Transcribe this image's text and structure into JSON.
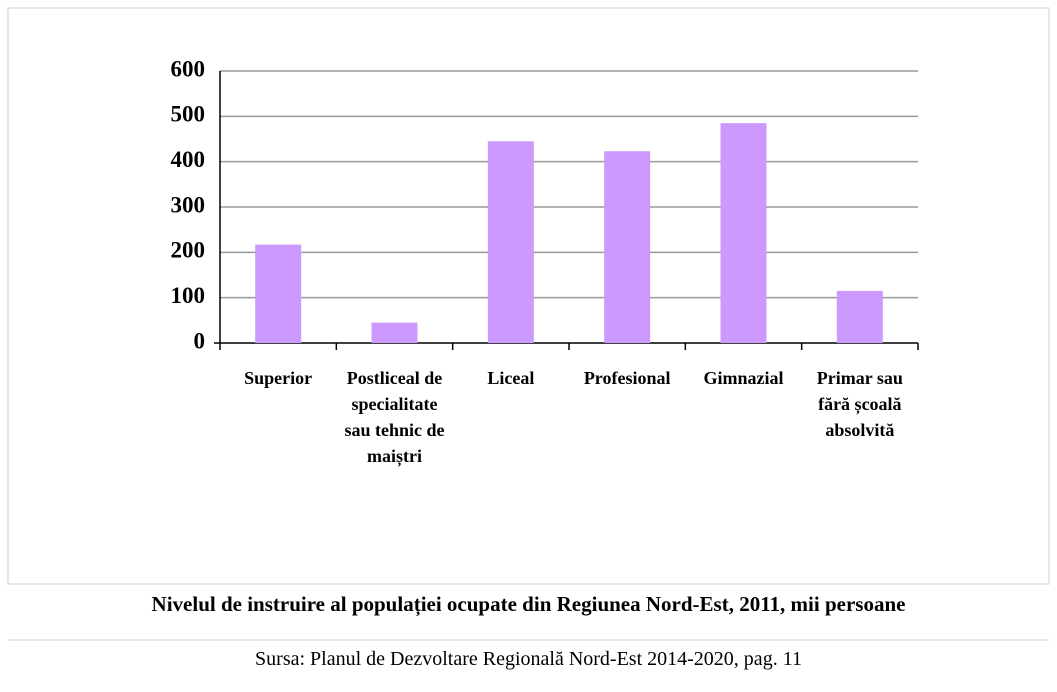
{
  "chart_data": {
    "type": "bar",
    "title": "Nivelul de instruire al populației ocupate din Regiunea Nord-Est, 2011, mii persoane",
    "source": "Sursa: Planul de Dezvoltare Regională Nord-Est 2014-2020, pag. 11",
    "categories": [
      "Superior",
      "Postliceal de specialitate sau tehnic de maiștri",
      "Liceal",
      "Profesional",
      "Gimnazial",
      "Primar sau fără școală absolvită"
    ],
    "values": [
      217,
      45,
      445,
      423,
      485,
      115
    ],
    "color": "#cc99ff",
    "ylim": [
      0,
      600
    ],
    "yticks": [
      0,
      100,
      200,
      300,
      400,
      500,
      600
    ],
    "grid": true
  }
}
